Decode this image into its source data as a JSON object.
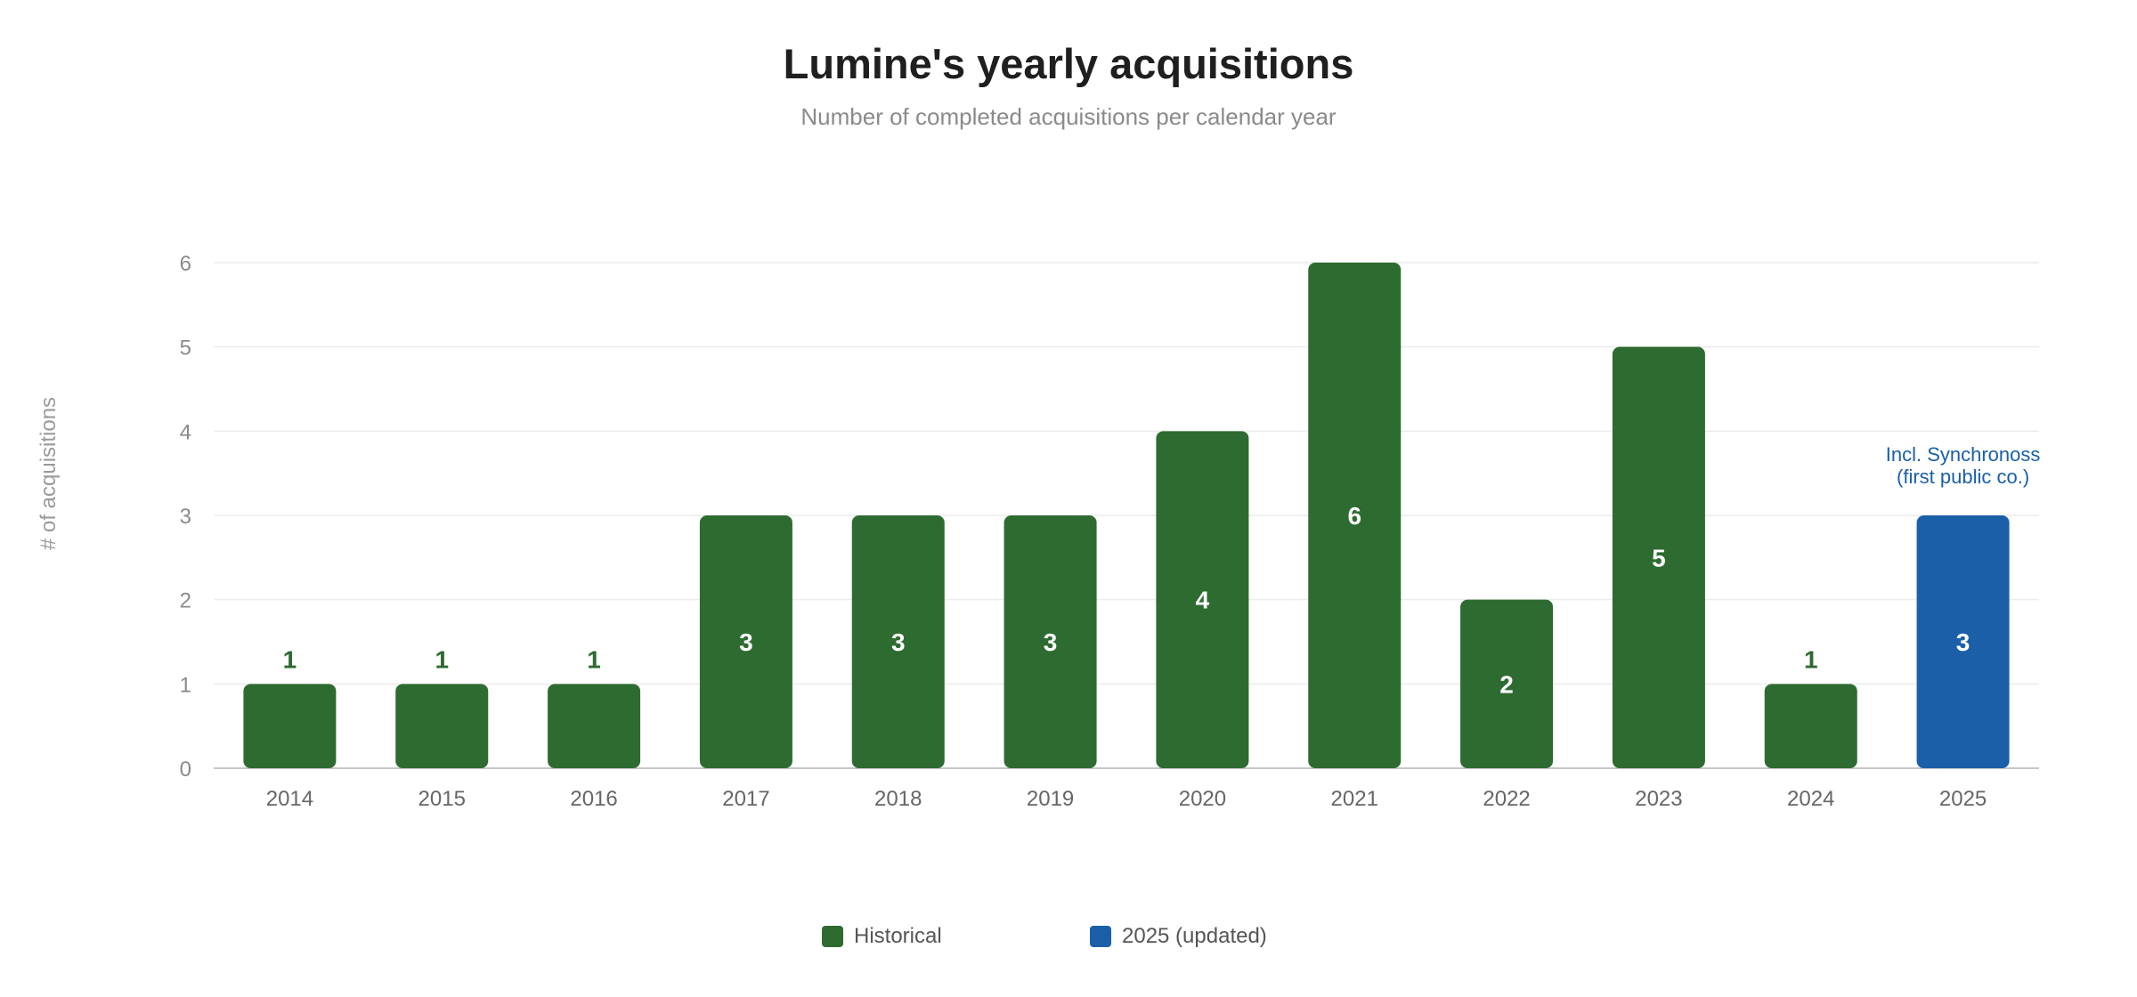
{
  "chart_data": {
    "type": "bar",
    "title": "Lumine's yearly acquisitions",
    "subtitle": "Number of completed acquisitions per calendar year",
    "xlabel": "",
    "ylabel": "# of acquisitions",
    "ylim": [
      0,
      6
    ],
    "yticks": [
      0,
      1,
      2,
      3,
      4,
      5,
      6
    ],
    "grid": true,
    "categories": [
      "2014",
      "2015",
      "2016",
      "2017",
      "2018",
      "2019",
      "2020",
      "2021",
      "2022",
      "2023",
      "2024",
      "2025"
    ],
    "values": [
      1,
      1,
      1,
      3,
      3,
      3,
      4,
      6,
      2,
      5,
      1,
      3
    ],
    "series_assignment": [
      "Historical",
      "Historical",
      "Historical",
      "Historical",
      "Historical",
      "Historical",
      "Historical",
      "Historical",
      "Historical",
      "Historical",
      "Historical",
      "2025 (updated)"
    ],
    "legend": [
      {
        "name": "Historical",
        "color": "#2e6b30"
      },
      {
        "name": "2025 (updated)",
        "color": "#1a5fa8"
      }
    ],
    "legend_position": "bottom-center",
    "annotation": {
      "category": "2025",
      "lines": [
        "Incl. Synchronoss",
        "(first public co.)"
      ],
      "color": "#1a5fa8"
    }
  }
}
